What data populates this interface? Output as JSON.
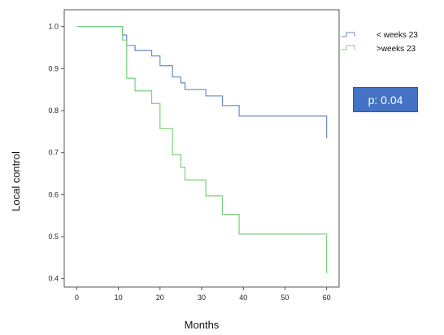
{
  "chart_data": {
    "type": "line",
    "xlabel": "Months",
    "ylabel": "Local control",
    "xlim": [
      -3,
      63
    ],
    "ylim": [
      0.38,
      1.04
    ],
    "x_ticks": [
      0,
      10,
      20,
      30,
      40,
      50,
      60
    ],
    "y_ticks": [
      0.4,
      0.5,
      0.6,
      0.7,
      0.8,
      0.9,
      1.0
    ],
    "y_tick_labels": [
      "0.4",
      "0.5",
      "0.6",
      "0.7",
      "0.8",
      "0.9",
      "1.0"
    ],
    "grid": false,
    "legend_position": "top-right",
    "series": [
      {
        "name": "< weeks 23",
        "color": "#6b88c6",
        "x": [
          0,
          10,
          11,
          12,
          14,
          18,
          20,
          23,
          25,
          26,
          31,
          35,
          39,
          60,
          60
        ],
        "y": [
          1.0,
          1.0,
          0.98,
          0.955,
          0.943,
          0.93,
          0.907,
          0.88,
          0.866,
          0.85,
          0.835,
          0.812,
          0.787,
          0.787,
          0.734
        ]
      },
      {
        "name": ">weeks 23",
        "color": "#7ccf7c",
        "x": [
          0,
          10,
          11,
          12,
          14,
          18,
          20,
          23,
          25,
          26,
          31,
          35,
          39,
          60,
          60
        ],
        "y": [
          1.0,
          1.0,
          0.968,
          0.877,
          0.847,
          0.817,
          0.757,
          0.695,
          0.665,
          0.635,
          0.597,
          0.553,
          0.506,
          0.506,
          0.413
        ]
      }
    ],
    "annotation": {
      "text": "p: 0.04",
      "color": "#4472c4"
    }
  }
}
